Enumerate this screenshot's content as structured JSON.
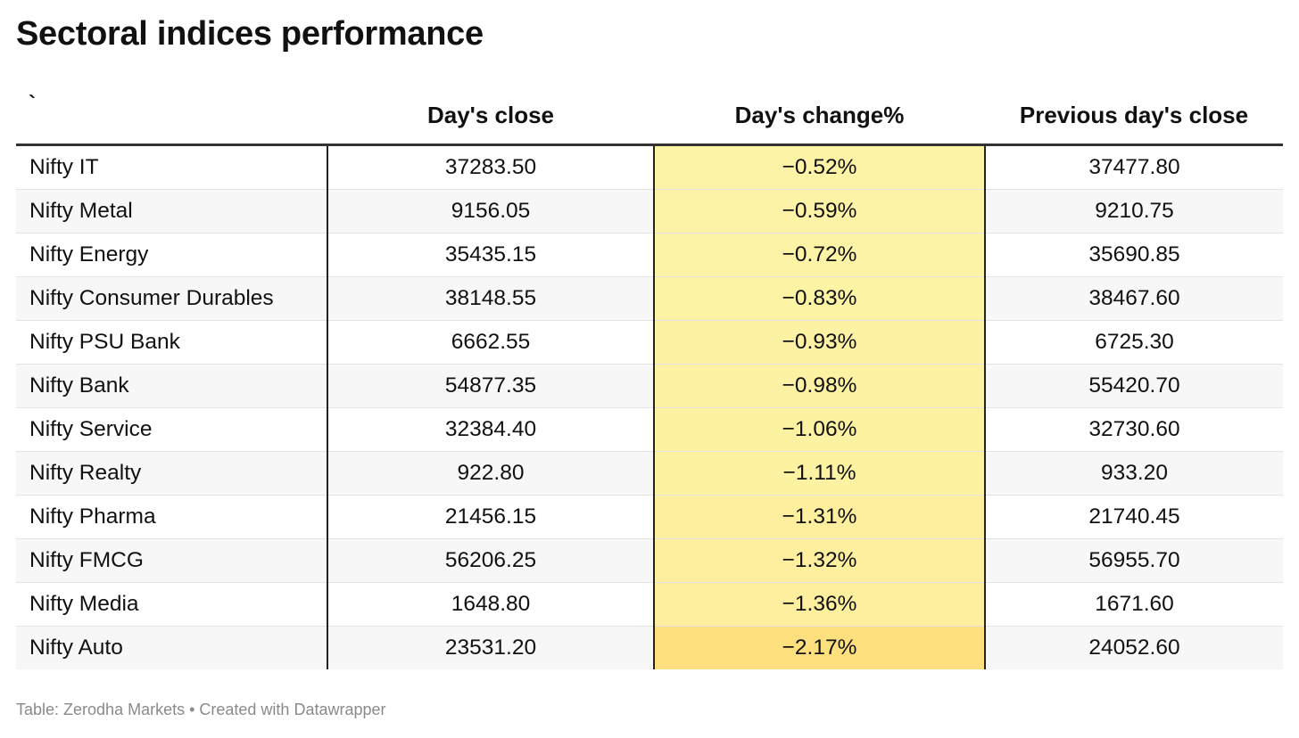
{
  "title": "Sectoral indices performance",
  "footer": "Table: Zerodha Markets • Created with Datawrapper",
  "colors": {
    "highlight_light": "#fdf3a6",
    "highlight_dark": "#fde07d",
    "row_alt": "#f7f7f7"
  },
  "chart_data": {
    "type": "table",
    "columns": [
      "`",
      "Day's close",
      "Day's change%",
      "Previous day's close"
    ],
    "rows": [
      [
        "Nifty IT",
        "37283.50",
        "−0.52%",
        "37477.80"
      ],
      [
        "Nifty Metal",
        "9156.05",
        "−0.59%",
        "9210.75"
      ],
      [
        "Nifty Energy",
        "35435.15",
        "−0.72%",
        "35690.85"
      ],
      [
        "Nifty Consumer Durables",
        "38148.55",
        "−0.83%",
        "38467.60"
      ],
      [
        "Nifty PSU Bank",
        "6662.55",
        "−0.93%",
        "6725.30"
      ],
      [
        "Nifty Bank",
        "54877.35",
        "−0.98%",
        "55420.70"
      ],
      [
        "Nifty Service",
        "32384.40",
        "−1.06%",
        "32730.60"
      ],
      [
        "Nifty Realty",
        "922.80",
        "−1.11%",
        "933.20"
      ],
      [
        "Nifty Pharma",
        "21456.15",
        "−1.31%",
        "21740.45"
      ],
      [
        "Nifty FMCG",
        "56206.25",
        "−1.32%",
        "56955.70"
      ],
      [
        "Nifty Media",
        "1648.80",
        "−1.36%",
        "1671.60"
      ],
      [
        "Nifty Auto",
        "23531.20",
        "−2.17%",
        "24052.60"
      ]
    ],
    "change_values": [
      -0.52,
      -0.59,
      -0.72,
      -0.83,
      -0.93,
      -0.98,
      -1.06,
      -1.11,
      -1.31,
      -1.32,
      -1.36,
      -2.17
    ]
  }
}
